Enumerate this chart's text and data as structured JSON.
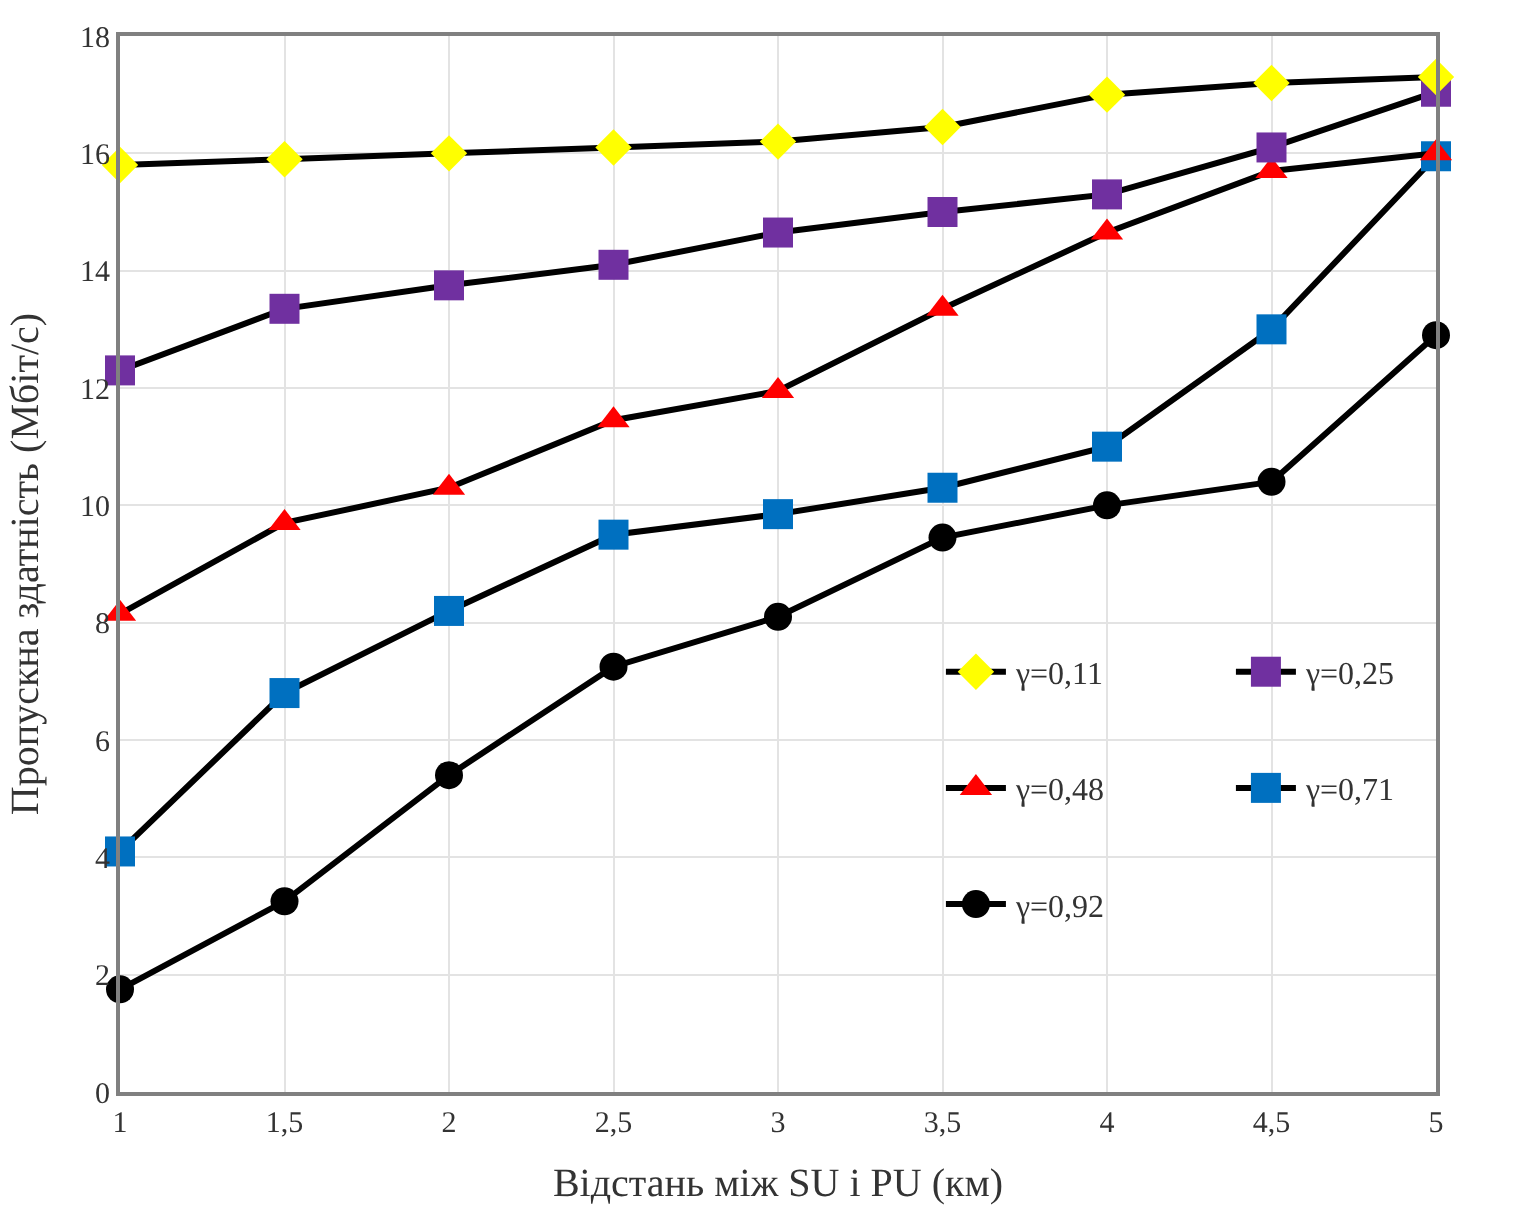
{
  "chart_data": {
    "type": "line",
    "xlabel": "Відстань між SU і PU (км)",
    "ylabel": "Пропускна здатність (Мбіт/с)",
    "x": [
      1,
      1.5,
      2,
      2.5,
      3,
      3.5,
      4,
      4.5,
      5
    ],
    "xlim": [
      1,
      5
    ],
    "xticks": [
      1,
      {
        "value": 1.5,
        "label": "1,5"
      },
      2,
      {
        "value": 2.5,
        "label": "2,5"
      },
      3,
      {
        "value": 3.5,
        "label": "3,5"
      },
      4,
      {
        "value": 4.5,
        "label": "4,5"
      },
      5
    ],
    "ylim": [
      0,
      18
    ],
    "yticks": [
      0,
      2,
      4,
      6,
      8,
      10,
      12,
      14,
      16,
      18
    ],
    "grid": true,
    "legend": "bottom right",
    "line_style": "solid",
    "series": [
      {
        "name": "γ=0,11",
        "color": "#ffff00",
        "marker": "diamond",
        "values": [
          15.8,
          15.9,
          16.0,
          16.1,
          16.2,
          16.45,
          17.0,
          17.2,
          17.3
        ]
      },
      {
        "name": "γ=0,25",
        "color": "#7030a0",
        "marker": "square",
        "values": [
          12.3,
          13.35,
          13.75,
          14.1,
          14.65,
          15.0,
          15.3,
          16.1,
          17.05
        ]
      },
      {
        "name": "γ=0,48",
        "color": "#ff0000",
        "marker": "triangle",
        "values": [
          8.15,
          9.7,
          10.3,
          11.45,
          11.95,
          13.35,
          14.65,
          15.7,
          16.0
        ]
      },
      {
        "name": "γ=0,71",
        "color": "#0070c0",
        "marker": "square",
        "values": [
          4.1,
          6.8,
          8.2,
          9.5,
          9.85,
          10.3,
          11.0,
          13.0,
          15.95
        ]
      },
      {
        "name": "γ=0,92",
        "color": "#000000",
        "marker": "circle",
        "values": [
          1.75,
          3.25,
          5.4,
          7.25,
          8.1,
          9.45,
          10.0,
          10.4,
          12.9
        ]
      }
    ]
  }
}
